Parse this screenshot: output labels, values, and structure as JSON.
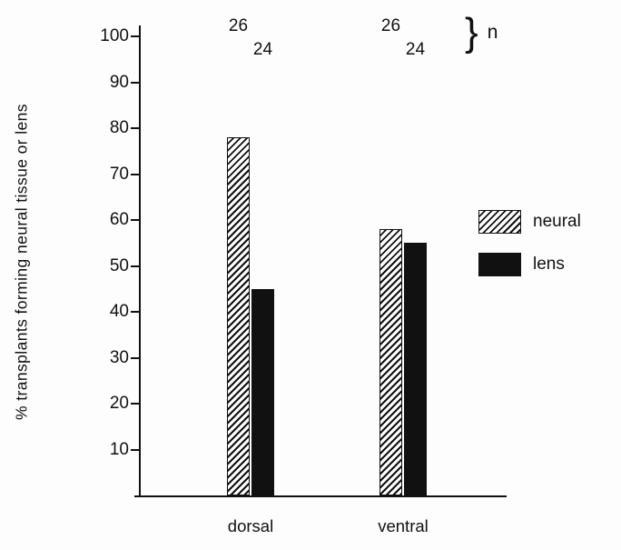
{
  "chart_data": {
    "type": "bar",
    "title": "",
    "ylabel": "% transplants forming neural tissue or lens",
    "xlabel": "",
    "ylim": [
      0,
      100
    ],
    "yticks": [
      100,
      90,
      80,
      70,
      60,
      50,
      40,
      30,
      20,
      10
    ],
    "categories": [
      "dorsal",
      "ventral"
    ],
    "series": [
      {
        "name": "neural",
        "style": "hatched",
        "values": [
          78,
          58
        ],
        "n": [
          26,
          26
        ]
      },
      {
        "name": "lens",
        "style": "solid",
        "values": [
          45,
          55
        ],
        "n": [
          24,
          24
        ]
      }
    ],
    "n_label": "n",
    "brace_glyph": "}",
    "legend_position": "right",
    "colors": {
      "ink": "#111111",
      "background": "#fdfdfd"
    }
  }
}
